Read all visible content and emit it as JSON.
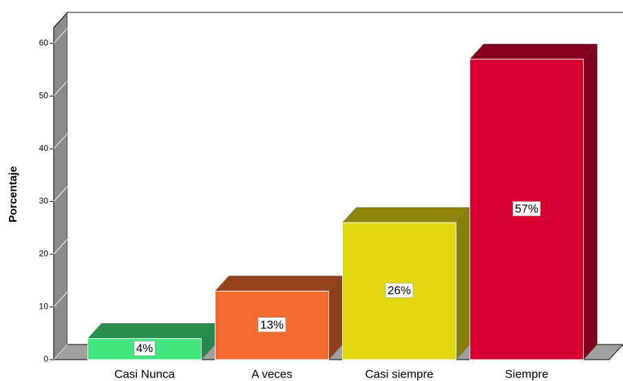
{
  "chart_data": {
    "type": "bar3d",
    "ylabel": "Porcentaje",
    "categories": [
      "Casi Nunca",
      "A veces",
      "Casi siempre",
      "Siempre"
    ],
    "values": [
      4,
      13,
      26,
      57
    ],
    "value_labels": [
      "4%",
      "13%",
      "26%",
      "57%"
    ],
    "colors": [
      "#41e67e",
      "#f26a2e",
      "#e2d611",
      "#d80031"
    ],
    "ylim": [
      0,
      63
    ],
    "yticks": [
      0,
      10,
      20,
      30,
      40,
      50,
      60
    ],
    "grid": false
  }
}
